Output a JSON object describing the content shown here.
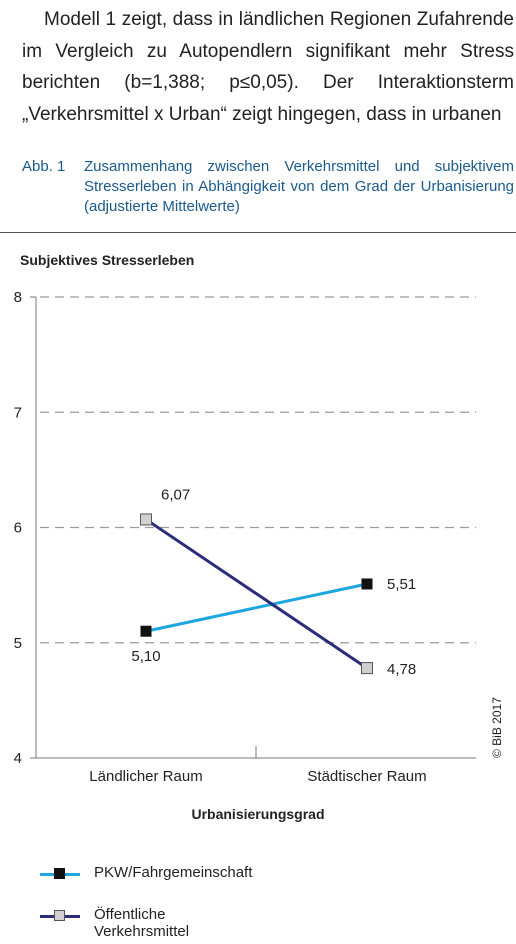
{
  "paragraph": "Modell 1 zeigt, dass in ländlichen Regionen Zufahrende im Vergleich zu Autopendlern signifikant mehr Stress berichten (b=1,388; p≤0,05). Der Interaktionsterm „Verkehrsmittel x Urban“ zeigt hingegen, dass in urbanen",
  "figure": {
    "number": "Abb. 1",
    "caption": "Zusammenhang zwischen Verkehrsmittel und subjektivem Stresserleben in Abhängigkeit von dem Grad der Urbanisierung (adjustierte Mittelwerte)"
  },
  "copyright": "© BiB 2017",
  "chart_data": {
    "type": "line",
    "title": "",
    "ylabel": "Subjektives Stresserleben",
    "xlabel": "Urbanisierungsgrad",
    "categories": [
      "Ländlicher Raum",
      "Städtischer Raum"
    ],
    "ylim": [
      4,
      8
    ],
    "yticks": [
      "4",
      "5",
      "6",
      "7",
      "8"
    ],
    "grid": true,
    "legend_position": "bottom-left",
    "series": [
      {
        "name": "PKW/Fahrgemeinschaft",
        "values": [
          5.1,
          5.51
        ],
        "labels": [
          "5,10",
          "5,51"
        ],
        "color": "#1ca7e0",
        "marker": "filled-square",
        "marker_color": "#111111"
      },
      {
        "name": "Öffentliche Verkehrsmittel",
        "values": [
          6.07,
          4.78
        ],
        "labels": [
          "6,07",
          "4,78"
        ],
        "color": "#2b2c7c",
        "marker": "open-square",
        "marker_color": "#d0d0d0"
      }
    ]
  }
}
